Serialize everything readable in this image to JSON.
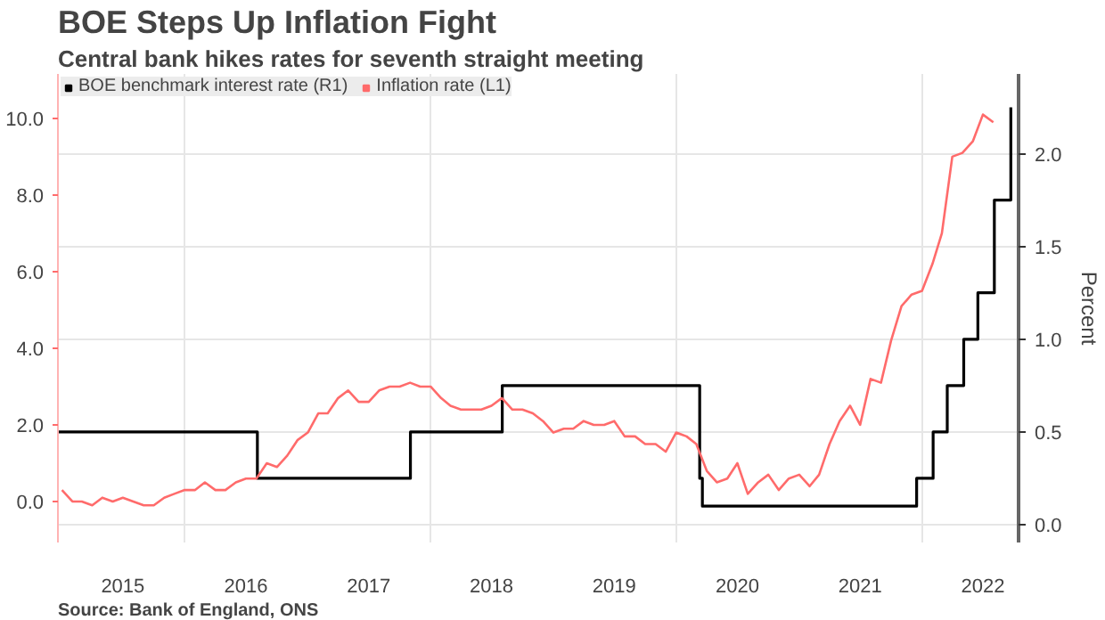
{
  "chart_data": {
    "type": "line",
    "title": "BOE Steps Up Inflation Fight",
    "subtitle": "Central bank hikes rates for seventh straight meeting",
    "y2label": "Percent",
    "annotations": [
      "Source: Bank of England, ONS"
    ],
    "xlim": [
      "2014-12-20",
      "2022-10-15"
    ],
    "xticks": [
      {
        "value": "2015-07-01",
        "label": "2015"
      },
      {
        "value": "2016-01-01",
        "label": null
      },
      {
        "value": "2016-07-01",
        "label": "2016"
      },
      {
        "value": "2017-07-01",
        "label": "2017"
      },
      {
        "value": "2018-01-01",
        "label": null
      },
      {
        "value": "2018-07-01",
        "label": "2018"
      },
      {
        "value": "2019-07-01",
        "label": "2019"
      },
      {
        "value": "2020-01-01",
        "label": null
      },
      {
        "value": "2020-07-01",
        "label": "2020"
      },
      {
        "value": "2021-07-01",
        "label": "2021"
      },
      {
        "value": "2022-01-01",
        "label": null
      },
      {
        "value": "2022-07-01",
        "label": "2022"
      }
    ],
    "ylim": [
      -1.07,
      11.16
    ],
    "yticks": [
      {
        "value": 0,
        "label": "0.0"
      },
      {
        "value": 2,
        "label": "2.0"
      },
      {
        "value": 4,
        "label": "4.0"
      },
      {
        "value": 6,
        "label": "6.0"
      },
      {
        "value": 8,
        "label": "8.0"
      },
      {
        "value": 10,
        "label": "10.0"
      }
    ],
    "y2lim": [
      -0.096,
      2.43
    ],
    "y2ticks": [
      {
        "value": 0,
        "label": "0.0"
      },
      {
        "value": 0.5,
        "label": "0.5"
      },
      {
        "value": 1,
        "label": "1.0"
      },
      {
        "value": 1.5,
        "label": "1.5"
      },
      {
        "value": 2,
        "label": "2.0"
      }
    ],
    "grid": true,
    "legend": "top left",
    "series": [
      {
        "name": "BOE benchmark interest rate (R1)",
        "type": "step",
        "axis": "y2",
        "color": "#000000",
        "x": [
          "2014-12-20",
          "2016-08-04",
          "2017-11-02",
          "2018-08-02",
          "2020-03-11",
          "2020-03-19",
          "2021-12-16",
          "2022-02-03",
          "2022-03-17",
          "2022-05-05",
          "2022-06-16",
          "2022-08-04",
          "2022-09-22"
        ],
        "values": [
          0.5,
          0.25,
          0.5,
          0.75,
          0.25,
          0.1,
          0.25,
          0.5,
          0.75,
          1.0,
          1.25,
          1.75,
          2.25
        ]
      },
      {
        "name": "Inflation rate (L1)",
        "type": "line",
        "color": "#ff6b6b",
        "x": [
          "2015-01",
          "2015-02",
          "2015-03",
          "2015-04",
          "2015-05",
          "2015-06",
          "2015-07",
          "2015-08",
          "2015-09",
          "2015-10",
          "2015-11",
          "2015-12",
          "2016-01",
          "2016-02",
          "2016-03",
          "2016-04",
          "2016-05",
          "2016-06",
          "2016-07",
          "2016-08",
          "2016-09",
          "2016-10",
          "2016-11",
          "2016-12",
          "2017-01",
          "2017-02",
          "2017-03",
          "2017-04",
          "2017-05",
          "2017-06",
          "2017-07",
          "2017-08",
          "2017-09",
          "2017-10",
          "2017-11",
          "2017-12",
          "2018-01",
          "2018-02",
          "2018-03",
          "2018-04",
          "2018-05",
          "2018-06",
          "2018-07",
          "2018-08",
          "2018-09",
          "2018-10",
          "2018-11",
          "2018-12",
          "2019-01",
          "2019-02",
          "2019-03",
          "2019-04",
          "2019-05",
          "2019-06",
          "2019-07",
          "2019-08",
          "2019-09",
          "2019-10",
          "2019-11",
          "2019-12",
          "2020-01",
          "2020-02",
          "2020-03",
          "2020-04",
          "2020-05",
          "2020-06",
          "2020-07",
          "2020-08",
          "2020-09",
          "2020-10",
          "2020-11",
          "2020-12",
          "2021-01",
          "2021-02",
          "2021-03",
          "2021-04",
          "2021-05",
          "2021-06",
          "2021-07",
          "2021-08",
          "2021-09",
          "2021-10",
          "2021-11",
          "2021-12",
          "2022-01",
          "2022-02",
          "2022-03",
          "2022-04",
          "2022-05",
          "2022-06",
          "2022-07",
          "2022-08"
        ],
        "values": [
          0.3,
          0.0,
          0.0,
          -0.1,
          0.1,
          0.0,
          0.1,
          0.0,
          -0.1,
          -0.1,
          0.1,
          0.2,
          0.3,
          0.3,
          0.5,
          0.3,
          0.3,
          0.5,
          0.6,
          0.6,
          1.0,
          0.9,
          1.2,
          1.6,
          1.8,
          2.3,
          2.3,
          2.7,
          2.9,
          2.6,
          2.6,
          2.9,
          3.0,
          3.0,
          3.1,
          3.0,
          3.0,
          2.7,
          2.5,
          2.4,
          2.4,
          2.4,
          2.5,
          2.7,
          2.4,
          2.4,
          2.3,
          2.1,
          1.8,
          1.9,
          1.9,
          2.1,
          2.0,
          2.0,
          2.1,
          1.7,
          1.7,
          1.5,
          1.5,
          1.3,
          1.8,
          1.7,
          1.5,
          0.8,
          0.5,
          0.6,
          1.0,
          0.2,
          0.5,
          0.7,
          0.3,
          0.6,
          0.7,
          0.4,
          0.7,
          1.5,
          2.1,
          2.5,
          2.0,
          3.2,
          3.1,
          4.2,
          5.1,
          5.4,
          5.5,
          6.2,
          7.0,
          9.0,
          9.1,
          9.4,
          10.1,
          9.9
        ]
      }
    ]
  }
}
